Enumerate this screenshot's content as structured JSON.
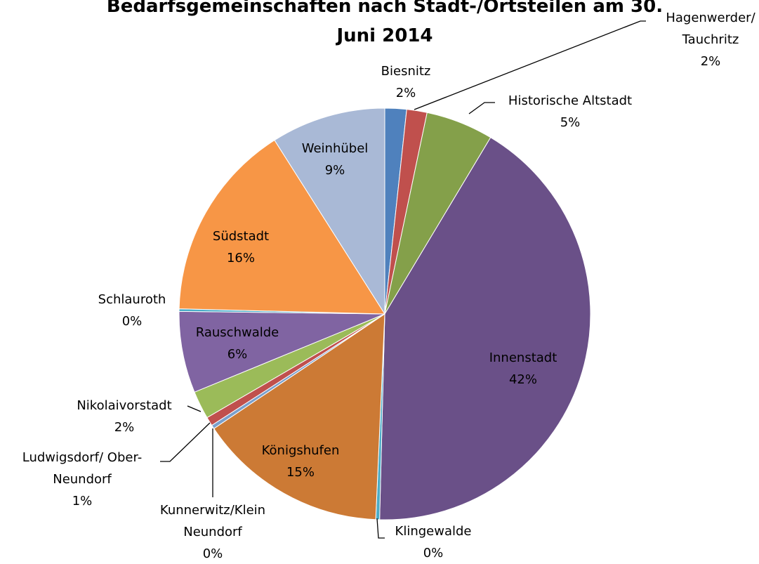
{
  "chart_data": {
    "type": "pie",
    "title": "Bedarfsgemeinschaften nach Stadt-/Ortsteilen am 30. Juni 2014",
    "categories": [
      "Biesnitz",
      "Hagenwerder/ Tauchritz",
      "Historische Altstadt",
      "Innenstadt",
      "Klingewalde",
      "Königshufen",
      "Kunnerwitz/Klein Neundorf",
      "Ludwigsdorf/ Ober-Neundorf",
      "Nikolaivorstadt",
      "Rauschwalde",
      "Schlauroth",
      "Südstadt",
      "Weinhübel"
    ],
    "values": [
      1.7,
      1.6,
      5.3,
      41.8,
      0.3,
      14.9,
      0.3,
      0.7,
      2.2,
      6.4,
      0.2,
      15.6,
      9.0
    ],
    "value_labels": [
      "2%",
      "2%",
      "5%",
      "42%",
      "0%",
      "15%",
      "0%",
      "1%",
      "2%",
      "6%",
      "0%",
      "16%",
      "9%"
    ],
    "colors": [
      "#4f81bd",
      "#c0504d",
      "#84a04a",
      "#6a5088",
      "#4bacc6",
      "#cc7a35",
      "#7aa0cc",
      "#c0504d",
      "#9bbb59",
      "#8064a2",
      "#4bacc6",
      "#f79646",
      "#a9b9d6"
    ]
  }
}
